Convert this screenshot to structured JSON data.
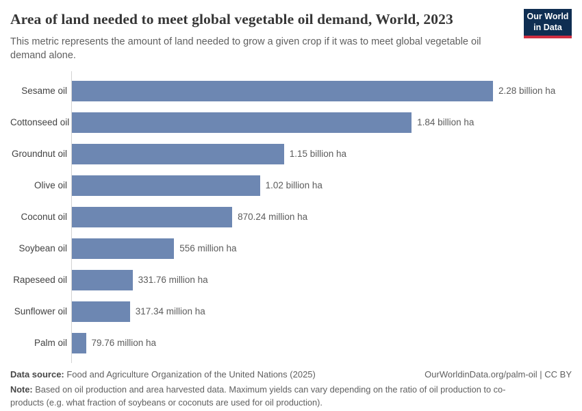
{
  "header": {
    "title": "Area of land needed to meet global vegetable oil demand, World, 2023",
    "subtitle": "This metric represents the amount of land needed to grow a given crop if it was to meet global vegetable oil demand alone.",
    "logo": {
      "line1": "Our World",
      "line2": "in Data"
    }
  },
  "chart_data": {
    "type": "bar",
    "orientation": "horizontal",
    "title": "Area of land needed to meet global vegetable oil demand, World, 2023",
    "unit": "hectares",
    "categories": [
      "Sesame oil",
      "Cottonseed oil",
      "Groundnut oil",
      "Olive oil",
      "Coconut oil",
      "Soybean oil",
      "Rapeseed oil",
      "Sunflower oil",
      "Palm oil"
    ],
    "values_million_ha": [
      2280,
      1840,
      1150,
      1020,
      870.24,
      556,
      331.76,
      317.34,
      79.76
    ],
    "value_labels": [
      "2.28 billion ha",
      "1.84 billion ha",
      "1.15 billion ha",
      "1.02 billion ha",
      "870.24 million ha",
      "556 million ha",
      "331.76 million ha",
      "317.34 million ha",
      "79.76 million ha"
    ],
    "xlim_million_ha": [
      0,
      2280
    ],
    "grid": false,
    "legend": "none",
    "bar_color": "#6d87b2"
  },
  "footer": {
    "data_source_label": "Data source:",
    "data_source": " Food and Agriculture Organization of the United Nations (2025)",
    "attribution": "OurWorldinData.org/palm-oil | CC BY",
    "note_label": "Note:",
    "note": " Based on oil production and area harvested data. Maximum yields can vary depending on the ratio of oil production to co-products (e.g. what fraction of soybeans or coconuts are used for oil production)."
  },
  "colors": {
    "bar": "#6d87b2",
    "axis_line": "#d3d3d3",
    "logo_background": "#0f2e52",
    "logo_accent": "#cf2e41",
    "title_text": "#363636",
    "body_text": "#5f5f5f"
  }
}
